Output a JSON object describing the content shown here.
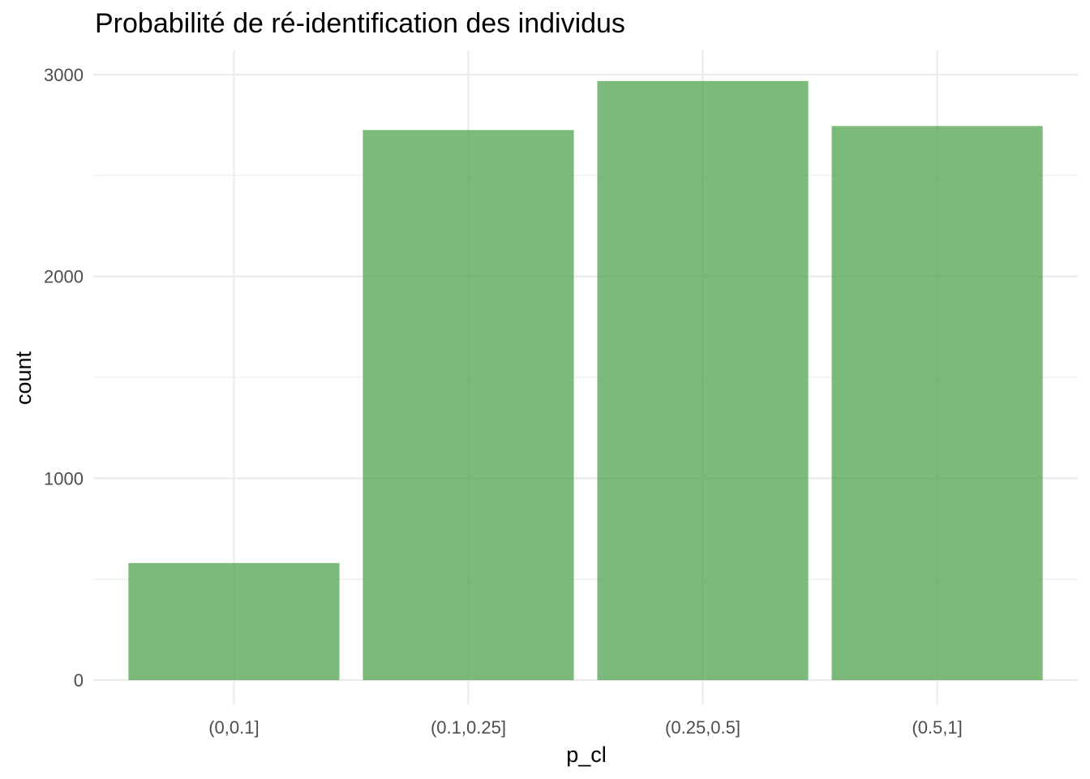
{
  "chart_data": {
    "type": "bar",
    "title": "Probabilité de ré-identification des individus",
    "xlabel": "p_cl",
    "ylabel": "count",
    "categories": [
      "(0,0.1]",
      "(0.1,0.25]",
      "(0.25,0.5]",
      "(0.5,1]"
    ],
    "values": [
      580,
      2725,
      2968,
      2745
    ],
    "ylim": [
      -120,
      3120
    ],
    "yticks": [
      0,
      1000,
      2000,
      3000
    ],
    "y_minor_ticks": [
      500,
      1500,
      2500
    ],
    "grid": true,
    "legend": "none",
    "bar_color": "#4CA14C",
    "bar_opacity": 0.73
  }
}
